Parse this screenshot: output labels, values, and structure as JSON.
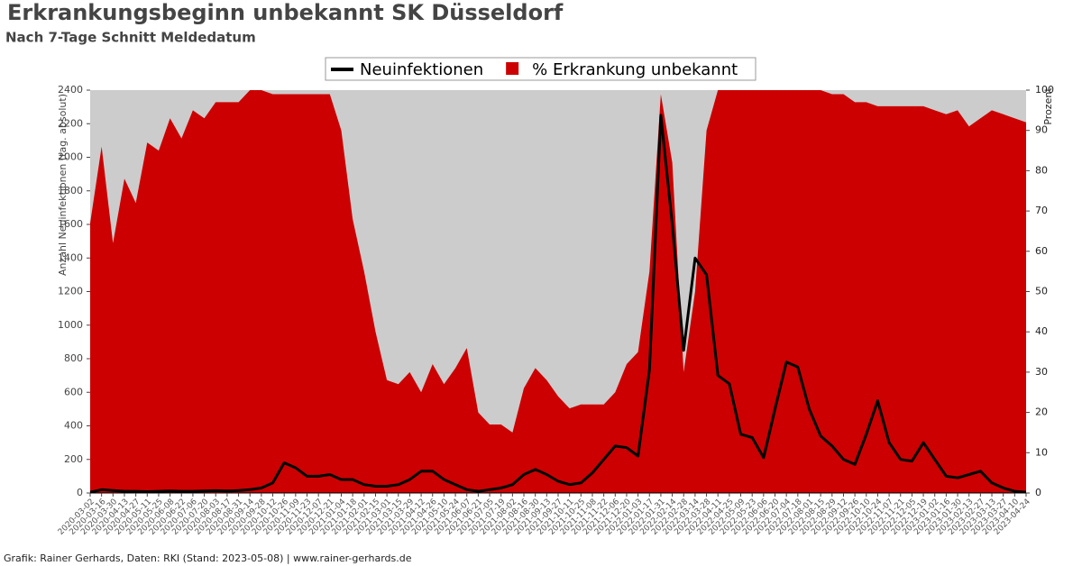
{
  "chart_data": {
    "type": "line-area",
    "title": "Erkrankungsbeginn unbekannt SK Düsseldorf",
    "subtitle": "Nach 7-Tage Schnitt Meldedatum",
    "y_label": "Anzahl Neuinfektionen (tag. absolut)",
    "y2_label": "Prozent",
    "footer": "Grafik: Rainer Gerhards, Daten: RKI (Stand: 2023-05-08) | www.rainer-gerhards.de",
    "x": [
      "2020-03-02",
      "2020-03-16",
      "2020-03-30",
      "2020-04-13",
      "2020-04-27",
      "2020-05-11",
      "2020-05-25",
      "2020-06-08",
      "2020-06-22",
      "2020-07-06",
      "2020-07-20",
      "2020-08-03",
      "2020-08-17",
      "2020-08-31",
      "2020-09-14",
      "2020-09-28",
      "2020-10-12",
      "2020-10-26",
      "2020-11-09",
      "2020-11-23",
      "2020-12-07",
      "2020-12-21",
      "2021-01-04",
      "2021-01-18",
      "2021-02-01",
      "2021-02-15",
      "2021-03-01",
      "2021-03-15",
      "2021-03-29",
      "2021-04-12",
      "2021-04-26",
      "2021-05-10",
      "2021-05-24",
      "2021-06-07",
      "2021-06-21",
      "2021-07-05",
      "2021-07-19",
      "2021-08-02",
      "2021-08-16",
      "2021-08-30",
      "2021-09-13",
      "2021-09-27",
      "2021-10-11",
      "2021-10-25",
      "2021-11-08",
      "2021-11-22",
      "2021-12-06",
      "2021-12-20",
      "2022-01-03",
      "2022-01-17",
      "2022-01-31",
      "2022-02-14",
      "2022-02-28",
      "2022-03-14",
      "2022-03-28",
      "2022-04-11",
      "2022-04-25",
      "2022-05-09",
      "2022-05-23",
      "2022-06-06",
      "2022-06-20",
      "2022-07-04",
      "2022-07-18",
      "2022-08-01",
      "2022-08-15",
      "2022-08-29",
      "2022-09-12",
      "2022-09-26",
      "2022-10-10",
      "2022-10-24",
      "2022-11-07",
      "2022-11-21",
      "2022-12-05",
      "2022-12-19",
      "2023-01-02",
      "2023-01-16",
      "2023-01-30",
      "2023-02-13",
      "2023-02-27",
      "2023-03-13",
      "2023-03-27",
      "2023-04-10",
      "2023-04-24"
    ],
    "series": [
      {
        "name": "% Erkrankung unbekannt",
        "color": "#cc0000",
        "axis": "y2",
        "kind": "area",
        "values": [
          67,
          86,
          62,
          78,
          72,
          87,
          85,
          93,
          88,
          95,
          93,
          97,
          97,
          97,
          100,
          100,
          99,
          99,
          99,
          99,
          99,
          99,
          90,
          68,
          55,
          40,
          28,
          27,
          30,
          25,
          32,
          27,
          31,
          36,
          20,
          17,
          17,
          15,
          26,
          31,
          28,
          24,
          21,
          22,
          22,
          22,
          25,
          32,
          35,
          55,
          99,
          82,
          30,
          50,
          90,
          100,
          100,
          100,
          100,
          100,
          100,
          100,
          100,
          100,
          100,
          99,
          99,
          97,
          97,
          96,
          96,
          96,
          96,
          96,
          95,
          94,
          95,
          91,
          93,
          95,
          94,
          93,
          92
        ]
      },
      {
        "name": "Neuinfektionen",
        "color": "#000000",
        "kind": "line",
        "values": [
          5,
          20,
          15,
          10,
          10,
          8,
          10,
          12,
          10,
          10,
          12,
          14,
          12,
          15,
          20,
          30,
          60,
          180,
          150,
          100,
          100,
          110,
          80,
          80,
          50,
          40,
          40,
          50,
          80,
          130,
          130,
          80,
          50,
          20,
          10,
          20,
          30,
          50,
          110,
          140,
          110,
          70,
          50,
          60,
          120,
          200,
          280,
          270,
          220,
          735,
          2250,
          1600,
          850,
          1400,
          1300,
          700,
          650,
          350,
          330,
          210,
          500,
          780,
          750,
          500,
          340,
          280,
          200,
          170,
          350,
          550,
          300,
          200,
          190,
          300,
          200,
          100,
          90,
          110,
          130,
          60,
          30,
          10,
          5
        ]
      }
    ],
    "ylim": [
      0,
      2400
    ],
    "yticks": [
      0,
      200,
      400,
      600,
      800,
      1000,
      1200,
      1400,
      1600,
      1800,
      2000,
      2200,
      2400
    ],
    "y2lim": [
      0,
      100
    ],
    "y2ticks": [
      0,
      10,
      20,
      30,
      40,
      50,
      60,
      70,
      80,
      90,
      100
    ],
    "background": "#cccccc"
  }
}
